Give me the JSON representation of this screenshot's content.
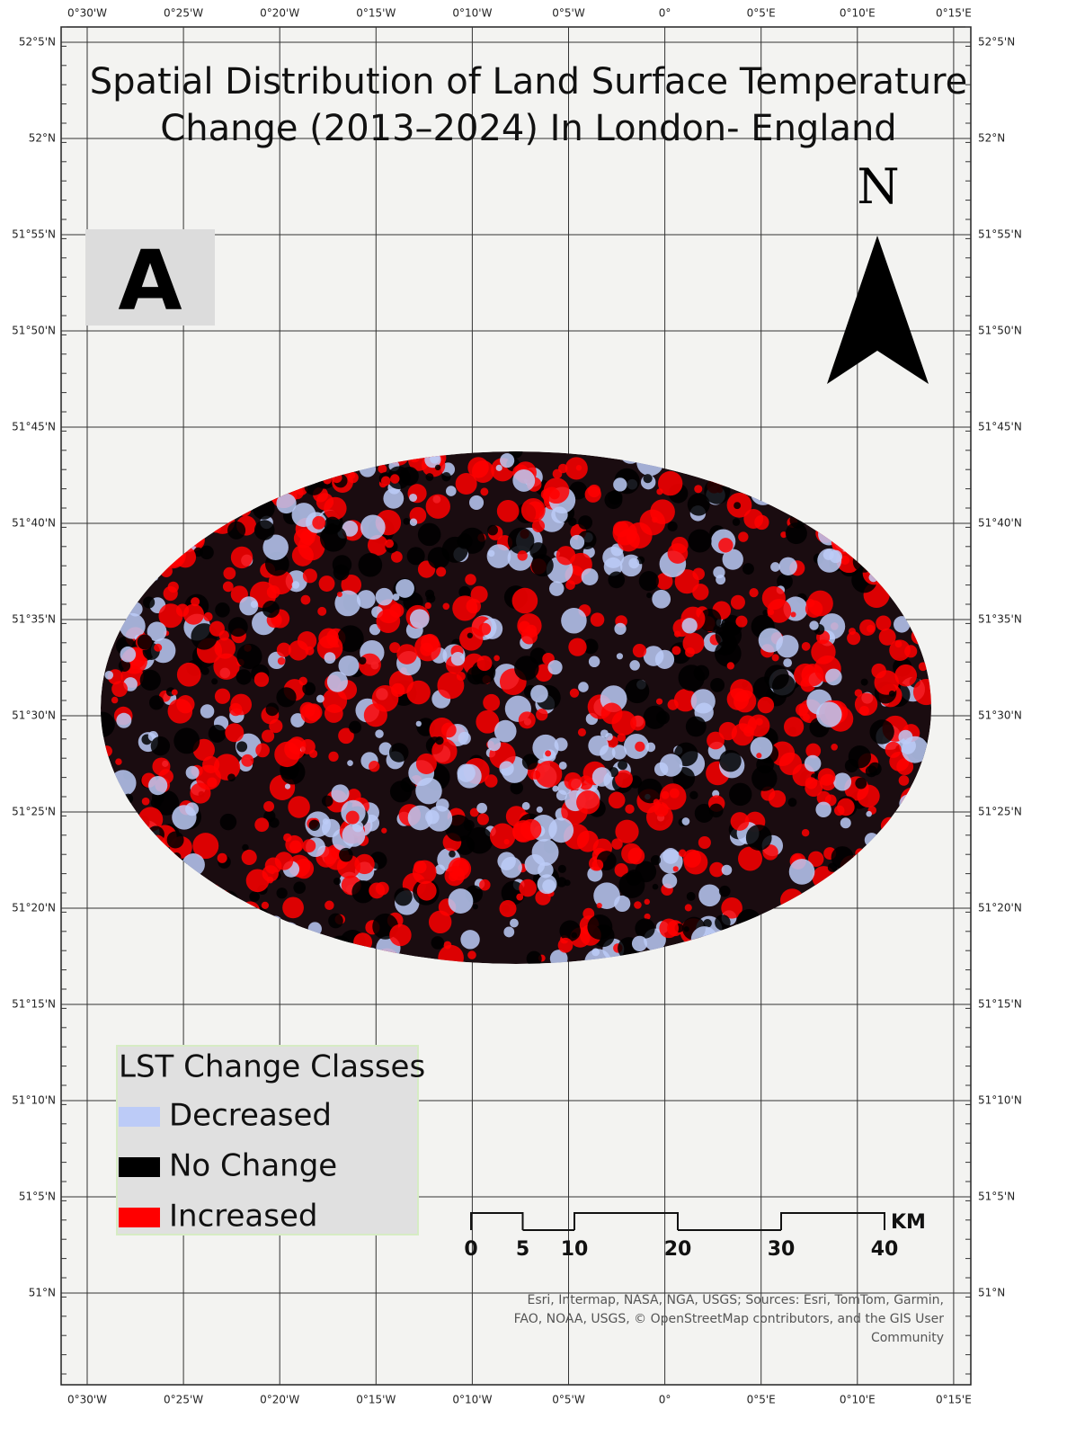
{
  "title_lines": [
    "Spatial Distribution of Land Surface Temperature",
    "Change (2013–2024) In London- England"
  ],
  "panel_label": "A",
  "north_label": "N",
  "graticule": {
    "longitudes": [
      "0°30'W",
      "0°25'W",
      "0°20'W",
      "0°15'W",
      "0°10'W",
      "0°5'W",
      "0°",
      "0°5'E",
      "0°10'E",
      "0°15'E"
    ],
    "latitudes": [
      "52°5'N",
      "52°N",
      "51°55'N",
      "51°50'N",
      "51°45'N",
      "51°40'N",
      "51°35'N",
      "51°30'N",
      "51°25'N",
      "51°20'N",
      "51°15'N",
      "51°10'N",
      "51°5'N",
      "51°N"
    ]
  },
  "legend": {
    "title": "LST Change Classes",
    "items": [
      {
        "label": "Decreased",
        "color": "#bccbf7"
      },
      {
        "label": "No Change",
        "color": "#000000"
      },
      {
        "label": "Increased",
        "color": "#ff0000"
      }
    ]
  },
  "scale_bar": {
    "ticks": [
      0,
      5,
      10,
      20,
      30,
      40
    ],
    "unit": "KM"
  },
  "attribution": [
    "Esri, Intermap, NASA, NGA, USGS; Sources: Esri, TomTom, Garmin,",
    "FAO, NOAA, USGS, © OpenStreetMap contributors, and the GIS User",
    "Community"
  ]
}
